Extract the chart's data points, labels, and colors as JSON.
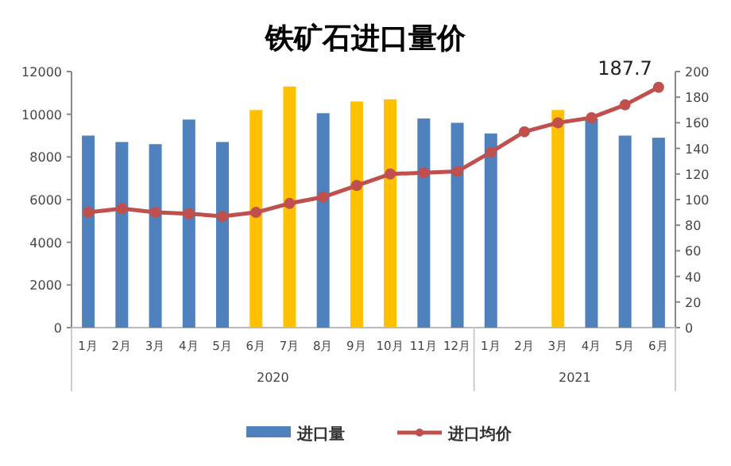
{
  "chart_data": {
    "type": "bar",
    "title": "铁矿石进口量价",
    "categories": [
      "1月",
      "2月",
      "3月",
      "4月",
      "5月",
      "6月",
      "7月",
      "8月",
      "9月",
      "10月",
      "11月",
      "12月",
      "1月",
      "2月",
      "3月",
      "4月",
      "5月",
      "6月"
    ],
    "annotations": [
      "2020",
      "2021"
    ],
    "series": [
      {
        "name": "进口量",
        "color": "#4f81bd",
        "colors": [
          "#4f81bd",
          "#4f81bd",
          "#4f81bd",
          "#4f81bd",
          "#4f81bd",
          "#ffc000",
          "#ffc000",
          "#4f81bd",
          "#ffc000",
          "#ffc000",
          "#4f81bd",
          "#4f81bd",
          "#4f81bd",
          null,
          "#ffc000",
          "#4f81bd",
          "#4f81bd",
          "#4f81bd"
        ],
        "values": [
          9000,
          8700,
          8600,
          9750,
          8700,
          10200,
          11300,
          10050,
          10600,
          10700,
          9800,
          9600,
          9100,
          null,
          10200,
          9800,
          9000,
          8900
        ]
      },
      {
        "name": "进口均价",
        "type": "line",
        "axis": "y2",
        "color": "#c0504d",
        "marker": "circle",
        "values": [
          90,
          93,
          90,
          89,
          87,
          90,
          97,
          102,
          111,
          120,
          121,
          122,
          137,
          153,
          160,
          164,
          174,
          187.7
        ],
        "value_labels": [
          null,
          null,
          null,
          null,
          null,
          null,
          null,
          null,
          null,
          null,
          null,
          null,
          null,
          null,
          null,
          null,
          null,
          "187.7"
        ]
      }
    ],
    "ylim": [
      0,
      12000
    ],
    "yticks": [
      0,
      2000,
      4000,
      6000,
      8000,
      10000,
      12000
    ],
    "y2lim": [
      0,
      200
    ],
    "y2ticks": [
      0,
      20,
      40,
      60,
      80,
      100,
      120,
      140,
      160,
      180,
      200
    ],
    "grid": false,
    "legend": "bottom"
  }
}
